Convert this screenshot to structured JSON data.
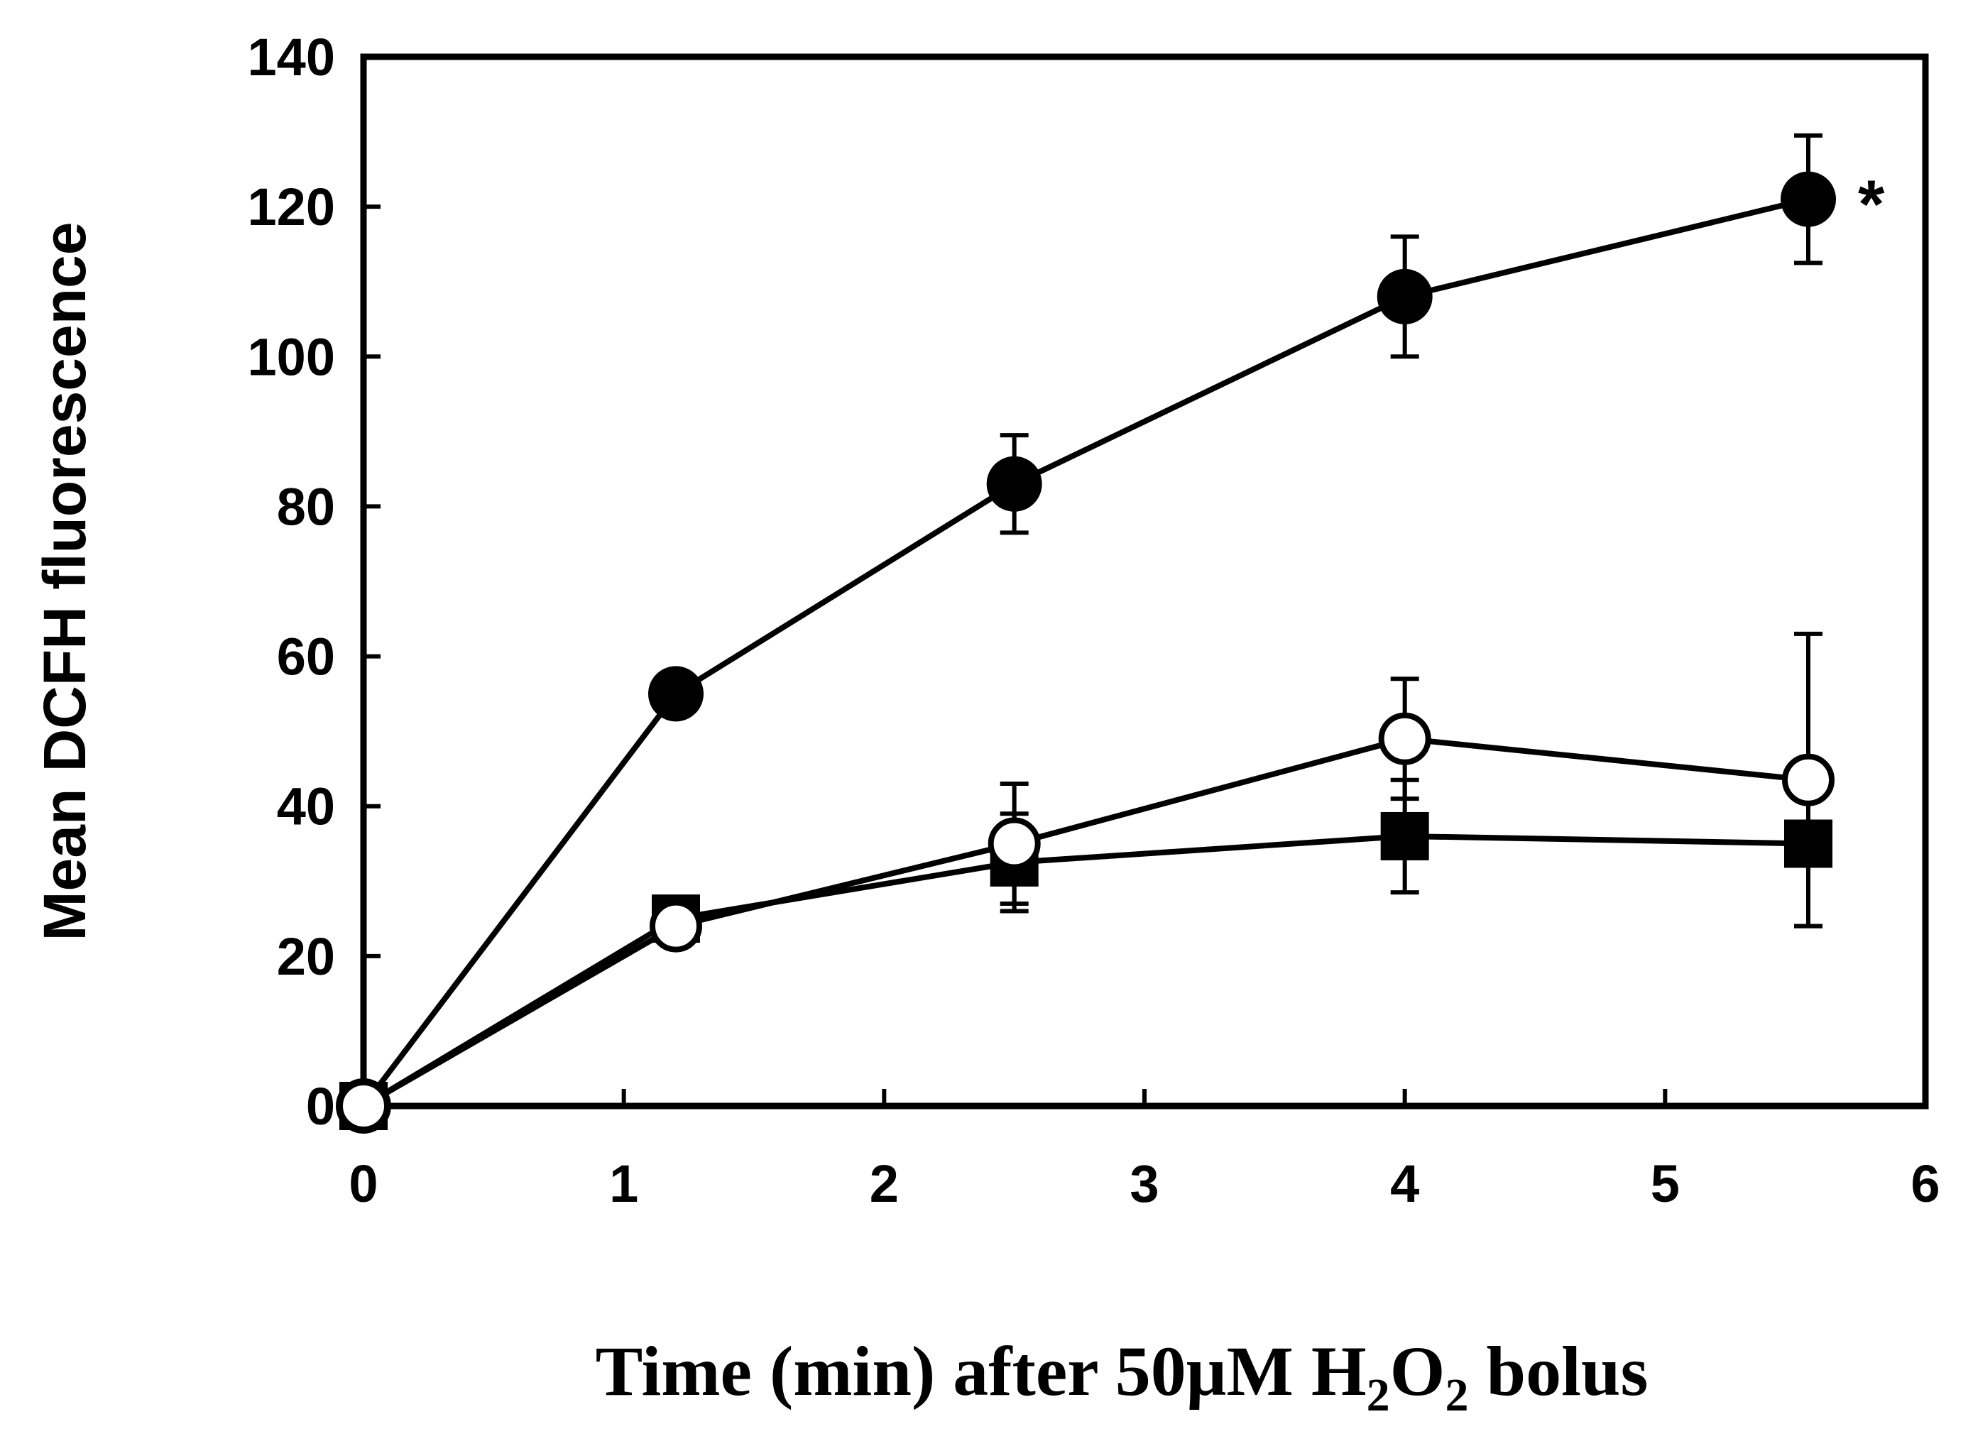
{
  "chart_data": {
    "type": "line",
    "title": "",
    "ylabel": "Mean DCFH fluorescence",
    "xlabel": {
      "prefix": "Time (min) after 50μM H",
      "sub1": "2",
      "mid": "O",
      "sub2": "2",
      "suffix": " bolus"
    },
    "xlim": [
      0,
      6
    ],
    "ylim": [
      0,
      140
    ],
    "x_ticks": [
      0,
      1,
      2,
      3,
      4,
      5,
      6
    ],
    "y_ticks": [
      0,
      20,
      40,
      60,
      80,
      100,
      120,
      140
    ],
    "grid": false,
    "series": [
      {
        "name": "filled circles",
        "marker": "circle-filled",
        "x": [
          0,
          1.2,
          2.5,
          4.0,
          5.55
        ],
        "y": [
          0,
          55,
          83,
          108,
          121
        ],
        "err": [
          0,
          0,
          6.5,
          8,
          8.5
        ]
      },
      {
        "name": "filled squares",
        "marker": "square-filled",
        "x": [
          0,
          1.2,
          2.5,
          4.0,
          5.55
        ],
        "y": [
          0,
          25,
          32.5,
          36,
          35
        ],
        "err": [
          0,
          0,
          6.5,
          7.5,
          11
        ]
      },
      {
        "name": "open circles",
        "marker": "circle-open",
        "x": [
          0,
          1.2,
          2.5,
          4.0,
          5.55
        ],
        "y": [
          0,
          24,
          35,
          49,
          43.5
        ],
        "err": [
          0,
          0,
          8,
          8,
          19.5
        ]
      }
    ],
    "annotations": [
      {
        "text": "*",
        "x": 5.55,
        "y": 121
      }
    ]
  }
}
